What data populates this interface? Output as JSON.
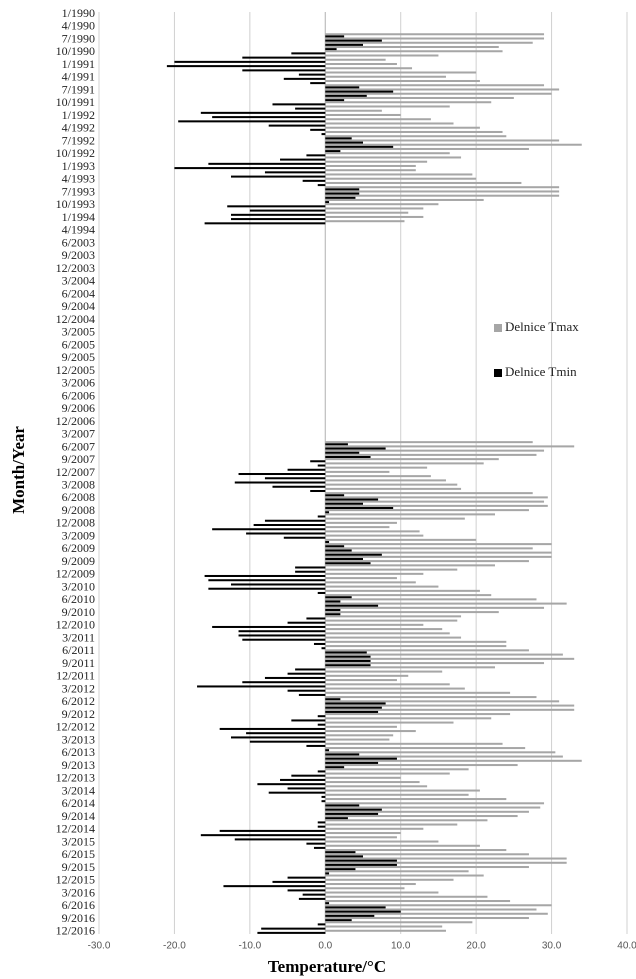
{
  "chart_data": {
    "type": "hbar",
    "x_label": "Temperature/°C",
    "y_label": "Month/Year",
    "legend_position": "right",
    "grid": true,
    "categories": [
      "1/1990",
      null,
      null,
      "4/1990",
      null,
      null,
      "7/1990",
      null,
      null,
      "10/1990",
      null,
      null,
      "1/1991",
      null,
      null,
      "4/1991",
      null,
      null,
      "7/1991",
      null,
      null,
      "10/1991",
      null,
      null,
      "1/1992",
      null,
      null,
      "4/1992",
      null,
      null,
      "7/1992",
      null,
      null,
      "10/1992",
      null,
      null,
      "1/1993",
      null,
      null,
      "4/1993",
      null,
      null,
      "7/1993",
      null,
      null,
      "10/1993",
      null,
      null,
      "1/1994",
      null,
      null,
      "4/1994",
      null,
      null,
      "6/2003",
      null,
      null,
      "9/2003",
      null,
      null,
      "12/2003",
      null,
      null,
      "3/2004",
      null,
      null,
      "6/2004",
      null,
      null,
      "9/2004",
      null,
      null,
      "12/2004",
      null,
      null,
      "3/2005",
      null,
      null,
      "6/2005",
      null,
      null,
      "9/2005",
      null,
      null,
      "12/2005",
      null,
      null,
      "3/2006",
      null,
      null,
      "6/2006",
      null,
      null,
      "9/2006",
      null,
      null,
      "12/2006",
      null,
      null,
      "3/2007",
      null,
      null,
      "6/2007",
      null,
      null,
      "9/2007",
      null,
      null,
      "12/2007",
      null,
      null,
      "3/2008",
      null,
      null,
      "6/2008",
      null,
      null,
      "9/2008",
      null,
      null,
      "12/2008",
      null,
      null,
      "3/2009",
      null,
      null,
      "6/2009",
      null,
      null,
      "9/2009",
      null,
      null,
      "12/2009",
      null,
      null,
      "3/2010",
      null,
      null,
      "6/2010",
      null,
      null,
      "9/2010",
      null,
      null,
      "12/2010",
      null,
      null,
      "3/2011",
      null,
      null,
      "6/2011",
      null,
      null,
      "9/2011",
      null,
      null,
      "12/2011",
      null,
      null,
      "3/2012",
      null,
      null,
      "6/2012",
      null,
      null,
      "9/2012",
      null,
      null,
      "12/2012",
      null,
      null,
      "3/2013",
      null,
      null,
      "6/2013",
      null,
      null,
      "9/2013",
      null,
      null,
      "12/2013",
      null,
      null,
      "3/2014",
      null,
      null,
      "6/2014",
      null,
      null,
      "9/2014",
      null,
      null,
      "12/2014",
      null,
      null,
      "3/2015",
      null,
      null,
      "6/2015",
      null,
      null,
      "9/2015",
      null,
      null,
      "12/2015",
      null,
      null,
      "3/2016",
      null,
      null,
      "6/2016",
      null,
      null,
      "9/2016",
      null,
      null,
      "12/2016"
    ],
    "series": [
      {
        "name": "Delnice Tmax",
        "color": "#a6a6a6",
        "values": [
          null,
          null,
          null,
          null,
          null,
          29,
          29,
          27.5,
          23,
          23.5,
          15,
          8,
          9.5,
          11.5,
          20,
          16,
          20.5,
          29,
          31,
          30,
          25,
          22,
          16.5,
          7.5,
          10,
          14,
          17,
          20.5,
          23.5,
          24,
          31,
          34,
          27,
          16.5,
          18,
          13.5,
          12,
          12,
          19.5,
          20,
          26,
          31,
          31,
          31,
          21,
          15,
          13,
          11,
          13,
          10.5,
          null,
          null,
          null,
          null,
          null,
          null,
          null,
          null,
          null,
          null,
          null,
          null,
          null,
          null,
          null,
          null,
          null,
          null,
          null,
          null,
          null,
          null,
          null,
          null,
          null,
          null,
          null,
          null,
          null,
          null,
          null,
          null,
          null,
          null,
          null,
          null,
          null,
          null,
          null,
          null,
          null,
          null,
          null,
          null,
          null,
          null,
          null,
          null,
          null,
          null,
          null,
          27.5,
          33,
          29,
          28,
          23,
          21,
          13.5,
          8.5,
          14,
          16,
          17.5,
          18,
          27.5,
          29.5,
          29,
          29.5,
          27,
          22.5,
          18.5,
          9.5,
          8.5,
          12.5,
          13,
          20,
          30,
          27.5,
          30,
          30,
          27,
          22.5,
          17.5,
          13,
          9.5,
          12,
          15,
          20.5,
          22,
          28,
          32,
          29,
          23,
          18,
          17.5,
          13,
          15.5,
          16.5,
          18,
          24,
          24,
          27,
          31.5,
          33,
          29,
          22.5,
          15.5,
          11,
          9.5,
          16.5,
          18.5,
          24.5,
          28,
          31,
          33,
          33,
          24.5,
          22,
          17,
          9.5,
          12,
          9,
          8.5,
          23.5,
          26.5,
          30.5,
          31.5,
          34,
          25.5,
          19,
          16.5,
          10,
          12.5,
          13.5,
          20.5,
          19,
          24,
          29,
          28.5,
          27,
          25.5,
          21.5,
          17.5,
          13,
          10,
          9.5,
          15,
          20.5,
          24,
          27,
          32,
          32,
          27,
          19,
          21,
          17,
          12,
          10.5,
          15,
          21.5,
          24.5,
          30,
          28,
          29.5,
          27,
          19.5,
          15.5,
          16
        ]
      },
      {
        "name": "Delnice Tmin",
        "color": "#000000",
        "values": [
          null,
          null,
          null,
          null,
          null,
          2.5,
          7.5,
          5,
          1.5,
          -4.5,
          -11,
          -20,
          -21,
          -11,
          -3.5,
          -5.5,
          -2,
          4.5,
          9,
          5.5,
          2.5,
          -7,
          -4,
          -16.5,
          -15,
          -19.5,
          -7.5,
          -2,
          -0.5,
          3.5,
          5,
          9,
          2,
          -2.5,
          -6,
          -15.5,
          -20,
          -8,
          -12.5,
          -3,
          -1,
          4.5,
          4.5,
          4,
          0.5,
          -13,
          -10,
          -12.5,
          -12.5,
          -16,
          null,
          null,
          null,
          null,
          null,
          null,
          null,
          null,
          null,
          null,
          null,
          null,
          null,
          null,
          null,
          null,
          null,
          null,
          null,
          null,
          null,
          null,
          null,
          null,
          null,
          null,
          null,
          null,
          null,
          null,
          null,
          null,
          null,
          null,
          null,
          null,
          null,
          null,
          null,
          null,
          null,
          null,
          null,
          null,
          null,
          null,
          null,
          null,
          null,
          null,
          null,
          3,
          8,
          4.5,
          6,
          -2,
          -1,
          -5,
          -11.5,
          -8,
          -12,
          -7,
          -2,
          2.5,
          7,
          5,
          9,
          0.5,
          -1,
          -8,
          -9.5,
          -15,
          -10.5,
          -5.5,
          0.5,
          2.5,
          3.5,
          7.5,
          5,
          6,
          -4,
          -4,
          -16,
          -15.5,
          -12.5,
          -15.5,
          -1,
          3.5,
          2,
          7,
          2,
          2,
          -2.5,
          -5,
          -15,
          -11.5,
          -11.5,
          -11,
          -1.5,
          -0.5,
          5.5,
          6,
          6,
          6,
          -4,
          -5,
          -8,
          -11,
          -17,
          -5,
          -3.5,
          2,
          8,
          7.5,
          7,
          -1,
          -4.5,
          -1,
          -14,
          -10.5,
          -12.5,
          -10,
          -2.5,
          0.5,
          4.5,
          9.5,
          7,
          2.5,
          -1,
          -4.5,
          -6,
          -9,
          -5,
          -7.5,
          -0.5,
          -0.5,
          4.5,
          7.5,
          7,
          3,
          -1,
          -1,
          -14,
          -16.5,
          -12,
          -2.5,
          -1.5,
          4,
          5,
          9.5,
          9.5,
          4,
          0.5,
          -5,
          -7,
          -13.5,
          -5,
          -3,
          -3.5,
          0.5,
          8,
          10,
          6.5,
          3.5,
          -1,
          -8.5,
          -9
        ]
      }
    ],
    "xlim": [
      -30,
      40
    ],
    "xticks": [
      {
        "value": -30,
        "label": "-30.0"
      },
      {
        "value": -20,
        "label": "-20.0"
      },
      {
        "value": -10,
        "label": "-10.0"
      },
      {
        "value": 0,
        "label": "0.0"
      },
      {
        "value": 10,
        "label": "10.0"
      },
      {
        "value": 20,
        "label": "20.0"
      },
      {
        "value": 30,
        "label": "30.0"
      },
      {
        "value": 40,
        "label": "40.0"
      }
    ]
  }
}
